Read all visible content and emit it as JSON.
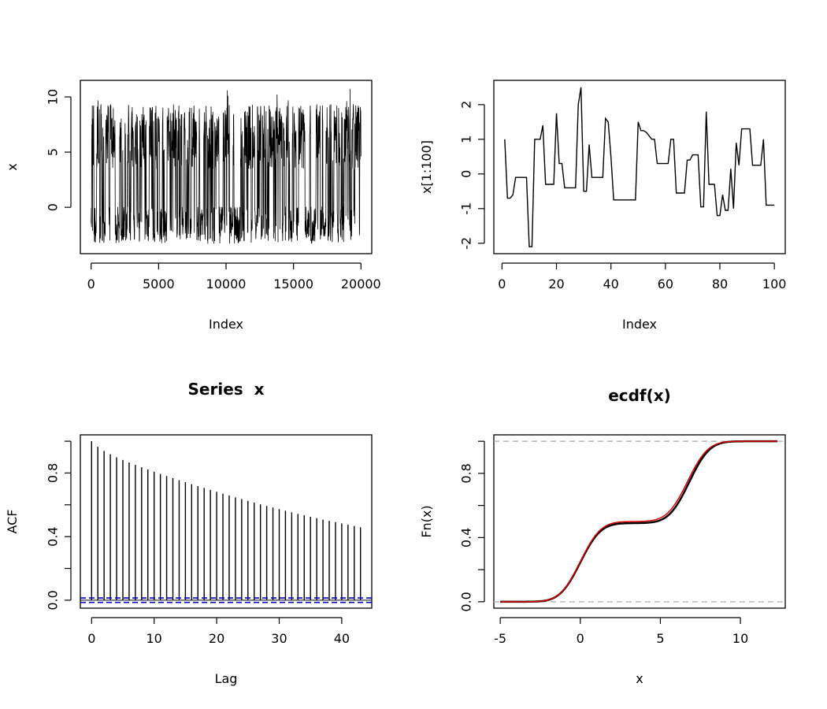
{
  "chart_data": [
    {
      "id": "trace",
      "type": "line",
      "title": "",
      "xlabel": "Index",
      "ylabel": "x",
      "xlim": [
        -800,
        20800
      ],
      "ylim": [
        -4.2,
        11.5
      ],
      "xticks": [
        0,
        5000,
        10000,
        15000,
        20000
      ],
      "xtick_labels": [
        "0",
        "5000",
        "10000",
        "15000",
        "20000"
      ],
      "yticks": [
        0,
        5,
        10
      ],
      "ytick_labels": [
        "0",
        "5",
        "10"
      ],
      "n_points": 20000,
      "states": [
        -1.6,
        6.4
      ],
      "range_observed": [
        -3.5,
        10.9
      ],
      "line_color": "#000000"
    },
    {
      "id": "first100",
      "type": "line",
      "title": "",
      "xlabel": "Index",
      "ylabel": "x[1:100]",
      "xlim": [
        -3,
        104
      ],
      "ylim": [
        -2.3,
        2.7
      ],
      "xticks": [
        0,
        20,
        40,
        60,
        80,
        100
      ],
      "xtick_labels": [
        "0",
        "20",
        "40",
        "60",
        "80",
        "100"
      ],
      "yticks": [
        -2,
        -1,
        0,
        1,
        2
      ],
      "ytick_labels": [
        "-2",
        "-1",
        "0",
        "1",
        "2"
      ],
      "x": [
        1,
        2,
        3,
        4,
        5,
        6,
        7,
        8,
        9,
        10,
        11,
        12,
        13,
        14,
        15,
        16,
        17,
        18,
        19,
        20,
        21,
        22,
        23,
        24,
        25,
        26,
        27,
        28,
        29,
        30,
        31,
        32,
        33,
        34,
        35,
        36,
        37,
        38,
        39,
        40,
        41,
        42,
        43,
        44,
        45,
        46,
        47,
        48,
        49,
        50,
        51,
        52,
        53,
        54,
        55,
        56,
        57,
        58,
        59,
        60,
        61,
        62,
        63,
        64,
        65,
        66,
        67,
        68,
        69,
        70,
        71,
        72,
        73,
        74,
        75,
        76,
        77,
        78,
        79,
        80,
        81,
        82,
        83,
        84,
        85,
        86,
        87,
        88,
        89,
        90,
        91,
        92,
        93,
        94,
        95,
        96,
        97,
        98,
        99,
        100
      ],
      "y": [
        1.0,
        -0.7,
        -0.7,
        -0.6,
        -0.1,
        -0.1,
        -0.1,
        -0.1,
        -0.1,
        -2.1,
        -2.1,
        1.0,
        1.0,
        1.0,
        1.4,
        -0.3,
        -0.3,
        -0.3,
        -0.3,
        1.75,
        0.3,
        0.3,
        -0.4,
        -0.4,
        -0.4,
        -0.4,
        -0.4,
        2.0,
        2.5,
        -0.5,
        -0.5,
        0.85,
        -0.1,
        -0.1,
        -0.1,
        -0.1,
        -0.1,
        1.6,
        1.5,
        0.5,
        -0.75,
        -0.75,
        -0.75,
        -0.75,
        -0.75,
        -0.75,
        -0.75,
        -0.75,
        -0.75,
        1.5,
        1.25,
        1.25,
        1.2,
        1.1,
        1.0,
        1.0,
        0.3,
        0.3,
        0.3,
        0.3,
        0.3,
        1.0,
        1.0,
        -0.55,
        -0.55,
        -0.55,
        -0.55,
        0.4,
        0.4,
        0.55,
        0.55,
        0.55,
        -0.95,
        -0.95,
        1.8,
        -0.3,
        -0.3,
        -0.3,
        -1.2,
        -1.2,
        -0.6,
        -1.05,
        -1.05,
        0.15,
        -1.0,
        0.9,
        0.25,
        1.3,
        1.3,
        1.3,
        1.3,
        0.25,
        0.25,
        0.25,
        0.25,
        1.0,
        -0.9,
        -0.9,
        -0.9,
        -0.9
      ],
      "line_color": "#000000"
    },
    {
      "id": "acf",
      "type": "bar",
      "title": "Series  x",
      "xlabel": "Lag",
      "ylabel": "ACF",
      "xlim": [
        -1.8,
        44.8
      ],
      "ylim": [
        -0.05,
        1.04
      ],
      "xticks": [
        0,
        10,
        20,
        30,
        40
      ],
      "xtick_labels": [
        "0",
        "10",
        "20",
        "30",
        "40"
      ],
      "yticks": [
        0.0,
        0.2,
        0.4,
        0.6,
        0.8,
        1.0
      ],
      "ytick_labels": [
        "0.0",
        "",
        "0.4",
        "",
        "0.8",
        ""
      ],
      "lags": [
        0,
        1,
        2,
        3,
        4,
        5,
        6,
        7,
        8,
        9,
        10,
        11,
        12,
        13,
        14,
        15,
        16,
        17,
        18,
        19,
        20,
        21,
        22,
        23,
        24,
        25,
        26,
        27,
        28,
        29,
        30,
        31,
        32,
        33,
        34,
        35,
        36,
        37,
        38,
        39,
        40,
        41,
        42,
        43
      ],
      "values": [
        1.0,
        0.965,
        0.939,
        0.918,
        0.899,
        0.882,
        0.866,
        0.851,
        0.836,
        0.822,
        0.808,
        0.794,
        0.781,
        0.768,
        0.755,
        0.743,
        0.73,
        0.718,
        0.706,
        0.694,
        0.682,
        0.67,
        0.659,
        0.647,
        0.636,
        0.625,
        0.614,
        0.603,
        0.593,
        0.583,
        0.573,
        0.563,
        0.553,
        0.543,
        0.534,
        0.525,
        0.516,
        0.507,
        0.499,
        0.491,
        0.483,
        0.475,
        0.467,
        0.459
      ],
      "ci": [
        -0.014,
        0.014
      ],
      "ci_color": "#0000cc",
      "line_color": "#000000"
    },
    {
      "id": "ecdf",
      "type": "line",
      "title": "ecdf(x)",
      "xlabel": "x",
      "ylabel": "Fn(x)",
      "xlim": [
        -5.4,
        12.8
      ],
      "ylim": [
        -0.04,
        1.04
      ],
      "xticks": [
        -5,
        0,
        5,
        10
      ],
      "xtick_labels": [
        "-5",
        "0",
        "5",
        "10"
      ],
      "yticks": [
        0.0,
        0.2,
        0.4,
        0.6,
        0.8,
        1.0
      ],
      "ytick_labels": [
        "0.0",
        "",
        "0.4",
        "",
        "0.8",
        ""
      ],
      "x_range": [
        -5,
        12.3
      ],
      "hlines": [
        0,
        1
      ],
      "hline_color": "#aaaaaa",
      "series": [
        {
          "mixture": [
            {
              "weight": 0.49,
              "mean": 0.0,
              "sd": 1.0
            },
            {
              "weight": 0.51,
              "mean": 6.8,
              "sd": 1.0
            }
          ],
          "color": "#000000",
          "width": 2.5
        },
        {
          "mixture": [
            {
              "weight": 0.5,
              "mean": 0.0,
              "sd": 1.0
            },
            {
              "weight": 0.5,
              "mean": 6.7,
              "sd": 1.0
            }
          ],
          "color": "#dd0000",
          "width": 1.5
        }
      ]
    }
  ]
}
